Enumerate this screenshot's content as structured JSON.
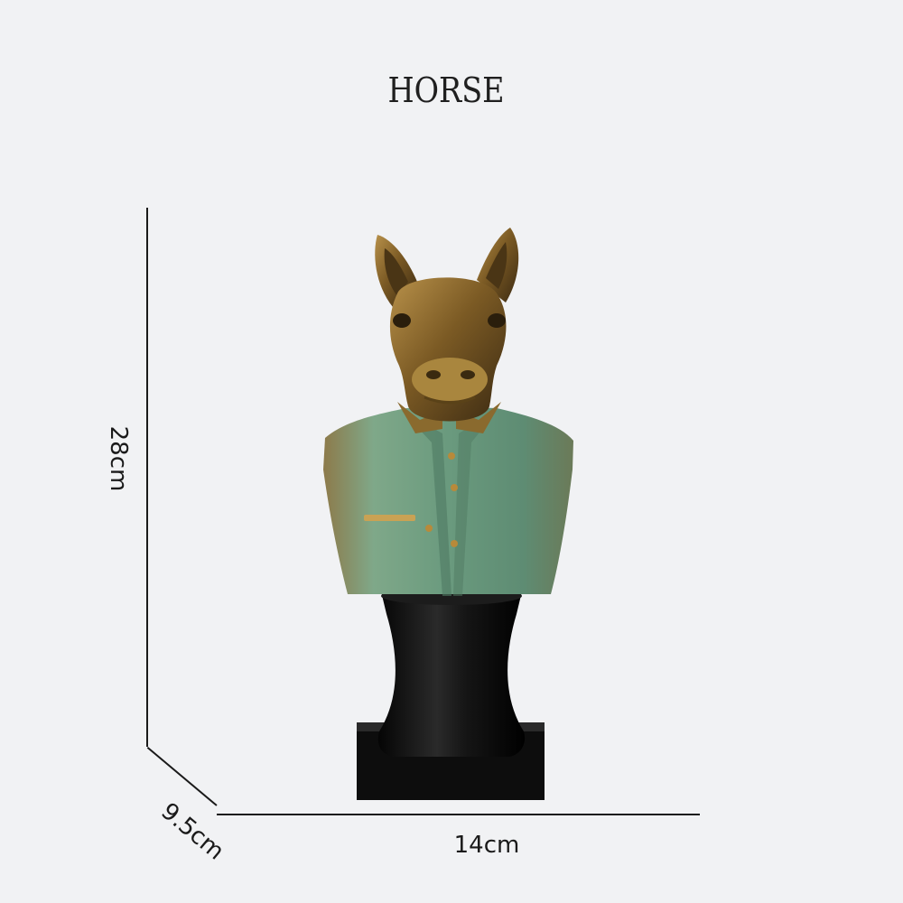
{
  "title": "HORSE",
  "dimensions": {
    "height": "28cm",
    "width": "14cm",
    "depth": "9.5cm"
  },
  "colors": {
    "background": "#f1f2f4",
    "bronze": "#8a6a2e",
    "jacket": "#6f9a7e",
    "pedestal": "#111111"
  }
}
